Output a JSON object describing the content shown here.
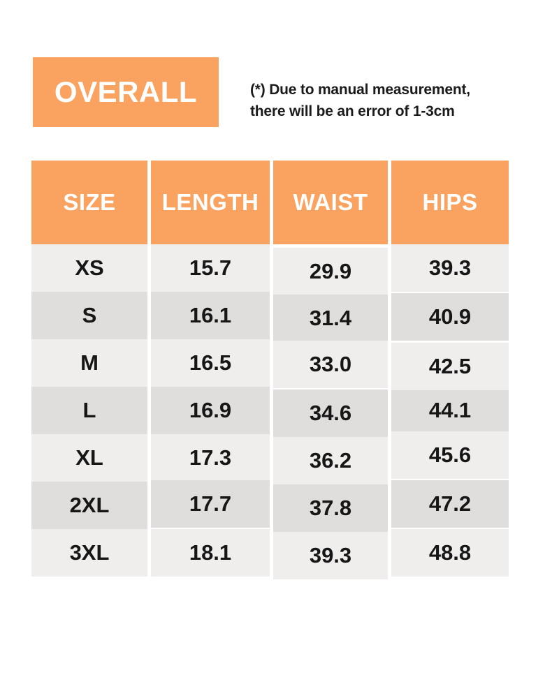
{
  "header": {
    "title": "OVERALL",
    "note_line1": "(*) Due to manual measurement,",
    "note_line2": "there will be an error of 1-3cm"
  },
  "table": {
    "headers": [
      "SIZE",
      "LENGTH",
      "WAIST",
      "HIPS"
    ],
    "rows": [
      {
        "size": "XS",
        "length": "15.7",
        "waist": "29.9",
        "hips": "39.3"
      },
      {
        "size": "S",
        "length": "16.1",
        "waist": "31.4",
        "hips": "40.9"
      },
      {
        "size": "M",
        "length": "16.5",
        "waist": "33.0",
        "hips": "42.5"
      },
      {
        "size": "L",
        "length": "16.9",
        "waist": "34.6",
        "hips": "44.1"
      },
      {
        "size": "XL",
        "length": "17.3",
        "waist": "36.2",
        "hips": "45.6"
      },
      {
        "size": "2XL",
        "length": "17.7",
        "waist": "37.8",
        "hips": "47.2"
      },
      {
        "size": "3XL",
        "length": "18.1",
        "waist": "39.3",
        "hips": "48.8"
      }
    ]
  },
  "colors": {
    "accent_orange": "#FAA260",
    "row_light": "#EFEEED",
    "row_dark": "#E0DEDC",
    "header_text": "#FFFFFF",
    "body_text": "#161616"
  },
  "chart_data": {
    "type": "table",
    "title": "OVERALL",
    "columns": [
      "SIZE",
      "LENGTH",
      "WAIST",
      "HIPS"
    ],
    "rows": [
      [
        "XS",
        15.7,
        29.9,
        39.3
      ],
      [
        "S",
        16.1,
        31.4,
        40.9
      ],
      [
        "M",
        16.5,
        33.0,
        42.5
      ],
      [
        "L",
        16.9,
        34.6,
        44.1
      ],
      [
        "XL",
        17.3,
        36.2,
        45.6
      ],
      [
        "2XL",
        17.7,
        37.8,
        47.2
      ],
      [
        "3XL",
        18.1,
        39.3,
        48.8
      ]
    ],
    "note": "(*) Due to manual measurement, there will be an error of 1-3cm"
  }
}
